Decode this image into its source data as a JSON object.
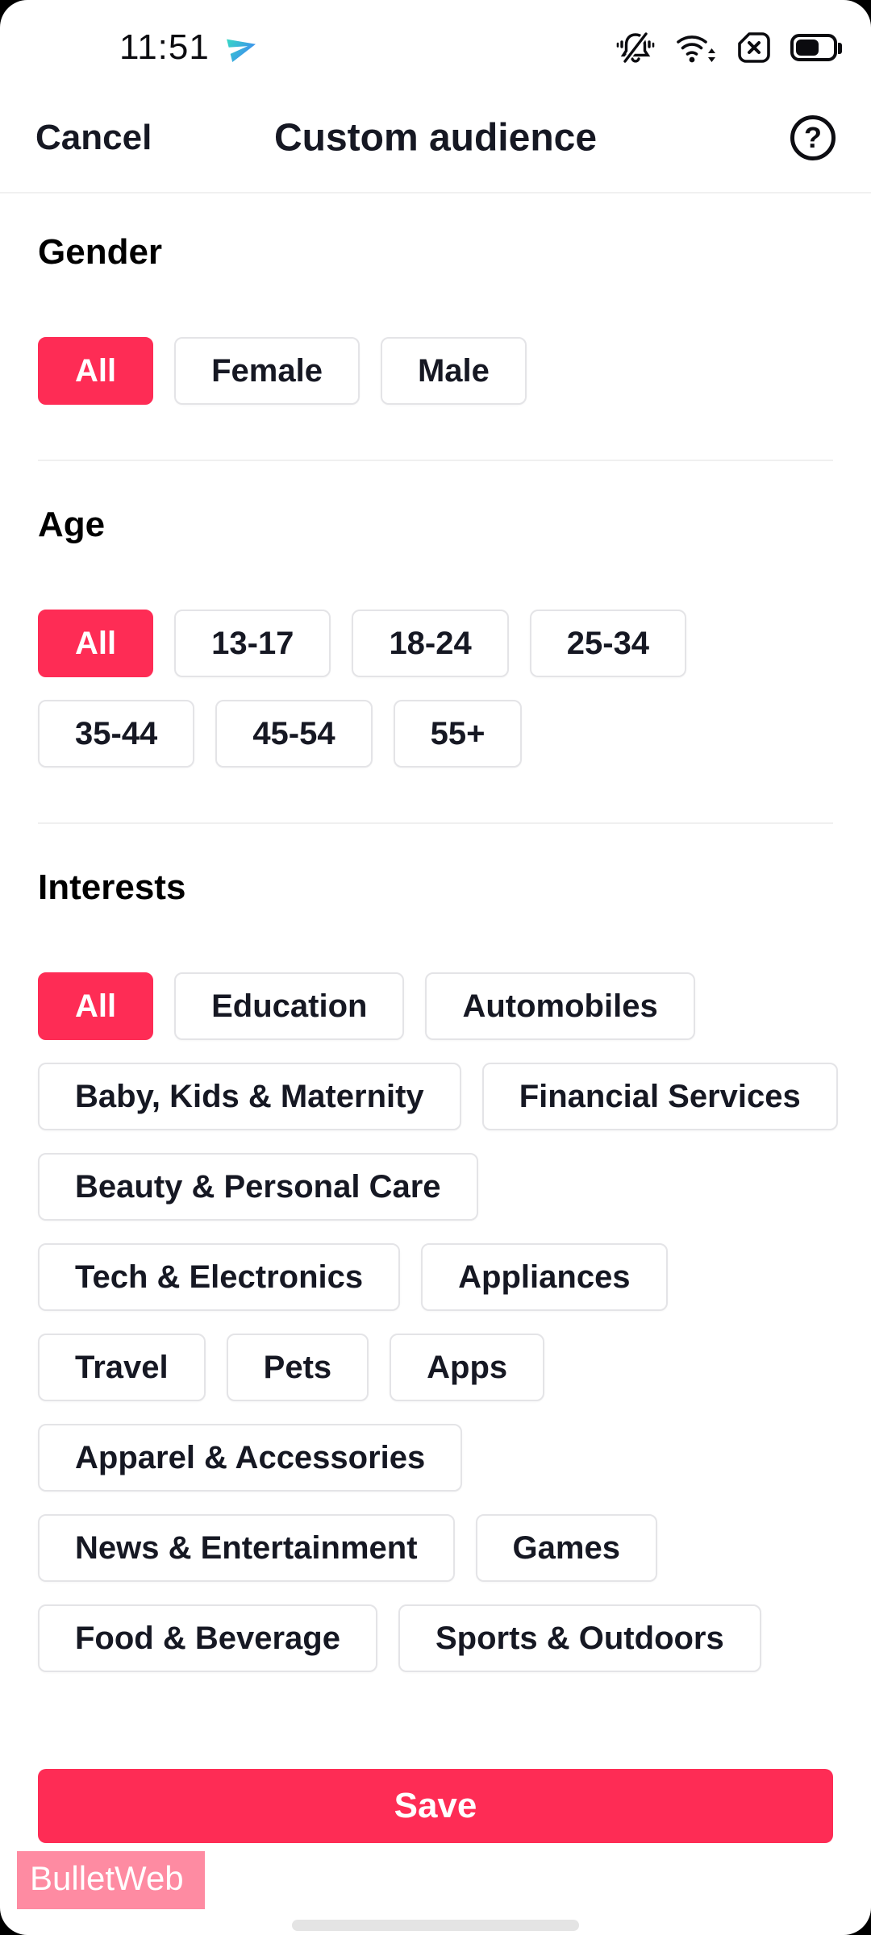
{
  "status_bar": {
    "time": "11:51",
    "icons": [
      "send-icon",
      "ringer-off-icon",
      "wifi-icon",
      "sim-missing-icon",
      "battery-icon"
    ],
    "battery_fill": "55%"
  },
  "header": {
    "cancel_label": "Cancel",
    "title": "Custom audience",
    "help_glyph": "?"
  },
  "sections": [
    {
      "id": "gender",
      "title": "Gender",
      "rows": [
        [
          {
            "label": "All",
            "selected": true
          },
          {
            "label": "Female"
          },
          {
            "label": "Male"
          }
        ]
      ]
    },
    {
      "id": "age",
      "title": "Age",
      "rows": [
        [
          {
            "label": "All",
            "selected": true
          },
          {
            "label": "13-17"
          },
          {
            "label": "18-24"
          },
          {
            "label": "25-34"
          }
        ],
        [
          {
            "label": "35-44"
          },
          {
            "label": "45-54"
          },
          {
            "label": "55+"
          }
        ]
      ]
    },
    {
      "id": "interests",
      "title": "Interests",
      "rows": [
        [
          {
            "label": "All",
            "selected": true
          },
          {
            "label": "Education"
          },
          {
            "label": "Automobiles"
          }
        ],
        [
          {
            "label": "Baby, Kids & Maternity"
          },
          {
            "label": "Financial Services"
          }
        ],
        [
          {
            "label": "Beauty & Personal Care"
          }
        ],
        [
          {
            "label": "Tech & Electronics"
          },
          {
            "label": "Appliances"
          }
        ],
        [
          {
            "label": "Travel"
          },
          {
            "label": "Pets"
          },
          {
            "label": "Apps"
          }
        ],
        [
          {
            "label": "Apparel & Accessories"
          }
        ],
        [
          {
            "label": "News & Entertainment"
          },
          {
            "label": "Games"
          }
        ],
        [
          {
            "label": "Food & Beverage"
          },
          {
            "label": "Sports & Outdoors"
          }
        ]
      ]
    }
  ],
  "footer": {
    "save_label": "Save"
  },
  "watermark": {
    "label": "BulletWeb"
  },
  "colors": {
    "accent": "#FE2C55",
    "text": "#161823",
    "chip_border": "#E4E4E7",
    "divider": "#F0F0F0",
    "watermark_bg": "rgba(254,44,85,0.55)"
  }
}
